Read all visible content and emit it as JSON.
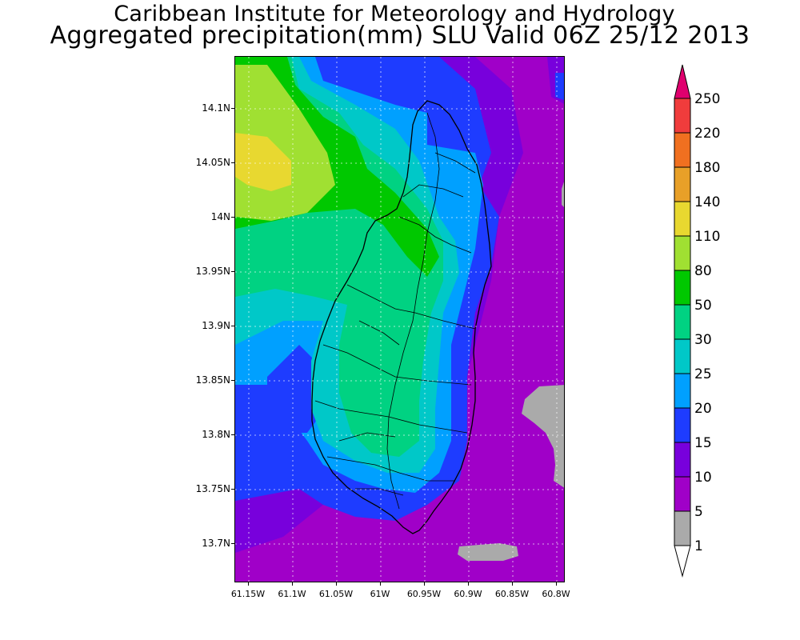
{
  "header": {
    "title_line1": "Caribbean Institute for Meteorology and Hydrology",
    "title_line2": "Aggregated precipitation(mm) SLU Valid 06Z 25/12 2013"
  },
  "map": {
    "lat_labels": [
      "14.1N",
      "14.05N",
      "14N",
      "13.95N",
      "13.9N",
      "13.85N",
      "13.8N",
      "13.75N",
      "13.7N"
    ],
    "lon_labels": [
      "61.15W",
      "61.1W",
      "61.05W",
      "61W",
      "60.95W",
      "60.9W",
      "60.85W",
      "60.8W"
    ]
  },
  "colorbar": {
    "labels": [
      "250",
      "220",
      "180",
      "140",
      "110",
      "80",
      "50",
      "30",
      "25",
      "20",
      "15",
      "10",
      "5",
      "1"
    ],
    "colors": {
      "c200": "#e0006e",
      "c220": "#f03c3c",
      "c180": "#f07020",
      "c140": "#e8a028",
      "c110": "#e8d830",
      "c80": "#a0e032",
      "c50": "#00c800",
      "c30": "#00d282",
      "c25": "#00c8c8",
      "c20": "#00a0ff",
      "c15": "#1e3cff",
      "c10": "#7800dc",
      "c5": "#a000c8",
      "c1": "#aaaaaa",
      "c0": "#ffffff"
    }
  }
}
